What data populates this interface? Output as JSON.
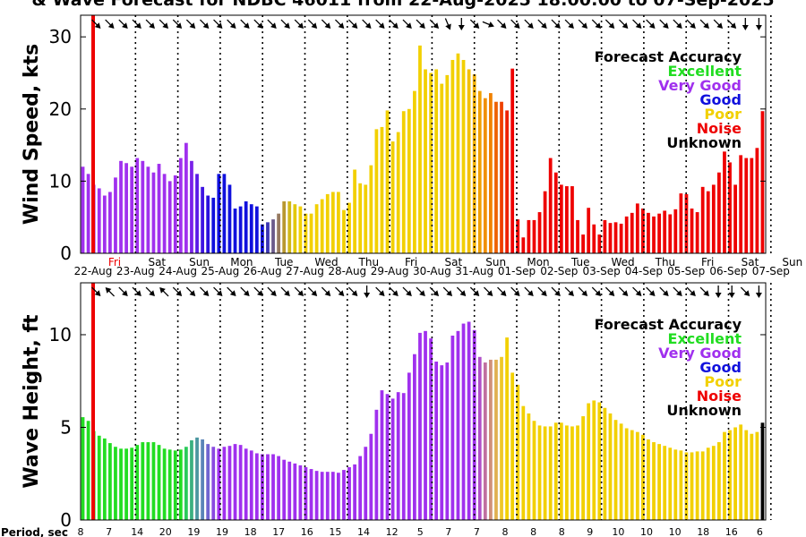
{
  "title": "& Wave Forecast for NDBC 46011 from 22-Aug-2025 18:00:00 to 07-Sep-2025",
  "period_label": "Period, sec",
  "period_values": [
    "8",
    "7",
    "14",
    "20",
    "19",
    "19",
    "18",
    "17",
    "16",
    "15",
    "14",
    "12",
    "5",
    "7",
    "7",
    "8",
    "8",
    "8",
    "9",
    "10",
    "10",
    "10",
    "18",
    "16",
    "6"
  ],
  "days": {
    "names": [
      "Fri",
      "Sat",
      "Sun",
      "Mon",
      "Tue",
      "Wed",
      "Thu",
      "Fri",
      "Sat",
      "Sun",
      "Mon",
      "Tue",
      "Wed",
      "Thu",
      "Fri",
      "Sat",
      "Sun"
    ],
    "dates": [
      "22-Aug",
      "23-Aug",
      "24-Aug",
      "25-Aug",
      "26-Aug",
      "27-Aug",
      "28-Aug",
      "29-Aug",
      "30-Aug",
      "31-Aug",
      "01-Sep",
      "02-Sep",
      "03-Sep",
      "04-Sep",
      "05-Sep",
      "06-Sep",
      "07-Sep"
    ]
  },
  "legend": {
    "title": "Forecast Accuracy",
    "items": [
      {
        "label": "Excellent",
        "color": "#22dd22"
      },
      {
        "label": "Very Good",
        "color": "#a030ee"
      },
      {
        "label": "Good",
        "color": "#1010dd"
      },
      {
        "label": "Poor",
        "color": "#f2d000"
      },
      {
        "label": "Noise",
        "color": "#ee0000"
      },
      {
        "label": "Unknown",
        "color": "#000000"
      }
    ]
  },
  "chart_data": [
    {
      "type": "bar",
      "title": "Wind Speed Forecast",
      "ylabel": "Wind Speed, kts",
      "ylim": [
        0,
        33
      ],
      "yticks": [
        0,
        10,
        20,
        30
      ],
      "values": [
        12,
        11,
        9.5,
        9,
        8,
        8.5,
        10.5,
        12.8,
        12.5,
        12,
        13.2,
        12.8,
        12,
        11.2,
        12.4,
        11,
        10,
        10.8,
        13.2,
        15.3,
        12.8,
        11,
        9.2,
        8,
        7.7,
        11,
        11,
        9.5,
        6.2,
        6.5,
        7.2,
        6.8,
        6.5,
        4,
        4.3,
        4.7,
        5.5,
        7.2,
        7.2,
        6.8,
        6.5,
        5.5,
        5.5,
        6.8,
        7.5,
        8.2,
        8.5,
        8.5,
        6,
        7,
        11.6,
        9.7,
        9.5,
        12.2,
        17.2,
        17.5,
        19.8,
        15.5,
        16.8,
        19.7,
        20,
        22.5,
        28.8,
        25.5,
        25,
        25.5,
        23.5,
        24.7,
        26.8,
        27.7,
        26.8,
        25.5,
        24.8,
        22.5,
        21.5,
        22.2,
        21,
        21,
        19.8,
        25.6,
        4.7,
        2.2,
        4.6,
        4.6,
        5.7,
        8.6,
        13.2,
        11.2,
        9.5,
        9.3,
        9.3,
        4.6,
        2.6,
        6.3,
        4,
        2.6,
        4.6,
        4.2,
        4.3,
        4.1,
        5.1,
        5.6,
        6.9,
        6.2,
        5.6,
        5.1,
        5.5,
        5.9,
        5.4,
        6.1,
        8.3,
        8.2,
        6.2,
        5.7,
        9.2,
        8.6,
        9.5,
        11.2,
        14.1,
        12.6,
        9.5,
        13.6,
        13.2,
        13.2,
        14.6,
        19.7
      ],
      "colors": [
        "#a030ee",
        "#a030ee",
        "#a030ee",
        "#a030ee",
        "#a030ee",
        "#a030ee",
        "#a030ee",
        "#a030ee",
        "#a030ee",
        "#a030ee",
        "#a030ee",
        "#a030ee",
        "#a030ee",
        "#a030ee",
        "#a030ee",
        "#a030ee",
        "#a030ee",
        "#a030ee",
        "#a030ee",
        "#a030ee",
        "#7a22e8",
        "#5a1ae6",
        "#3e14e2",
        "#2a10de",
        "#1010dd",
        "#1010dd",
        "#1010dd",
        "#1010dd",
        "#1010dd",
        "#1010dd",
        "#1010dd",
        "#1010dd",
        "#1010dd",
        "#1010dd",
        "#3a34b4",
        "#6a5a8a",
        "#967a60",
        "#b89830",
        "#d0b818",
        "#e2c80a",
        "#f2d000",
        "#f2d000",
        "#f2d000",
        "#f2d000",
        "#f2d000",
        "#f2d000",
        "#f2d000",
        "#f2d000",
        "#f2d000",
        "#f2d000",
        "#f2d000",
        "#f2d000",
        "#f2d000",
        "#f2d000",
        "#f2d000",
        "#f2d000",
        "#f2d000",
        "#f2d000",
        "#f2d000",
        "#f2d000",
        "#f2d000",
        "#f2d000",
        "#f2d000",
        "#f2d000",
        "#f2d000",
        "#f2d000",
        "#f2d000",
        "#f2d000",
        "#f2d000",
        "#f2d000",
        "#f2d000",
        "#f2c000",
        "#f2b000",
        "#f0a000",
        "#f09000",
        "#f08000",
        "#ee6000",
        "#ee4000",
        "#ee2000",
        "#ee0000",
        "#ee0000",
        "#ee0000",
        "#ee0000",
        "#ee0000",
        "#ee0000",
        "#ee0000",
        "#ee0000",
        "#ee0000",
        "#ee0000",
        "#ee0000",
        "#ee0000",
        "#ee0000",
        "#ee0000",
        "#ee0000",
        "#ee0000",
        "#ee0000",
        "#ee0000",
        "#ee0000",
        "#ee0000",
        "#ee0000",
        "#ee0000",
        "#ee0000",
        "#ee0000",
        "#ee0000",
        "#ee0000",
        "#ee0000",
        "#ee0000",
        "#ee0000",
        "#ee0000",
        "#ee0000",
        "#ee0000",
        "#ee0000",
        "#ee0000",
        "#ee0000",
        "#ee0000",
        "#ee0000",
        "#ee0000",
        "#ee0000",
        "#ee0000",
        "#ee0000",
        "#ee0000",
        "#ee0000",
        "#ee0000",
        "#ee0000",
        "#ee0000",
        "#ee0000"
      ]
    },
    {
      "type": "bar",
      "title": "Wave Height Forecast",
      "ylabel": "Wave Height, ft",
      "ylim": [
        0,
        12.8
      ],
      "yticks": [
        0,
        5,
        10
      ],
      "values": [
        5.55,
        5.35,
        4.8,
        4.55,
        4.4,
        4.15,
        3.95,
        3.85,
        3.85,
        3.9,
        4.05,
        4.2,
        4.2,
        4.2,
        4.05,
        3.85,
        3.8,
        3.75,
        3.8,
        3.95,
        4.3,
        4.45,
        4.35,
        4.1,
        3.95,
        3.85,
        3.95,
        4.0,
        4.1,
        4.05,
        3.85,
        3.75,
        3.6,
        3.55,
        3.55,
        3.55,
        3.45,
        3.25,
        3.15,
        3.05,
        2.95,
        2.85,
        2.75,
        2.65,
        2.6,
        2.6,
        2.6,
        2.55,
        2.7,
        2.85,
        3.0,
        3.45,
        3.95,
        4.65,
        5.95,
        7.0,
        6.8,
        6.55,
        6.9,
        6.85,
        7.95,
        8.95,
        10.1,
        10.2,
        9.8,
        8.55,
        8.35,
        8.5,
        9.95,
        10.2,
        10.6,
        10.7,
        10.25,
        8.8,
        8.5,
        8.65,
        8.65,
        8.8,
        9.85,
        7.95,
        7.3,
        6.15,
        5.75,
        5.35,
        5.1,
        5.05,
        5.05,
        5.25,
        5.25,
        5.1,
        5.05,
        5.1,
        5.6,
        6.3,
        6.45,
        6.35,
        6.05,
        5.75,
        5.4,
        5.2,
        4.95,
        4.85,
        4.75,
        4.6,
        4.35,
        4.2,
        4.1,
        4.0,
        3.9,
        3.8,
        3.75,
        3.65,
        3.65,
        3.7,
        3.7,
        3.9,
        4.0,
        4.2,
        4.75,
        4.85,
        5.0,
        5.15,
        4.85,
        4.65,
        4.75,
        5.25
      ],
      "colors": [
        "#22dd22",
        "#22dd22",
        "#22dd22",
        "#22dd22",
        "#22dd22",
        "#22dd22",
        "#22dd22",
        "#22dd22",
        "#22dd22",
        "#22dd22",
        "#22dd22",
        "#22dd22",
        "#22dd22",
        "#22dd22",
        "#22dd22",
        "#22dd22",
        "#22dd22",
        "#22dd22",
        "#22dd22",
        "#2aca5a",
        "#3ab080",
        "#4a96a0",
        "#5a84b8",
        "#7064d0",
        "#8a4ae0",
        "#a030ee",
        "#a030ee",
        "#a030ee",
        "#a030ee",
        "#a030ee",
        "#a030ee",
        "#a030ee",
        "#a030ee",
        "#a030ee",
        "#a030ee",
        "#a030ee",
        "#a030ee",
        "#a030ee",
        "#a030ee",
        "#a030ee",
        "#a030ee",
        "#a030ee",
        "#a030ee",
        "#a030ee",
        "#a030ee",
        "#a030ee",
        "#a030ee",
        "#a030ee",
        "#a030ee",
        "#a030ee",
        "#a030ee",
        "#a030ee",
        "#a030ee",
        "#a030ee",
        "#a030ee",
        "#a030ee",
        "#a030ee",
        "#a030ee",
        "#a030ee",
        "#a030ee",
        "#a030ee",
        "#a030ee",
        "#a030ee",
        "#a030ee",
        "#a030ee",
        "#a030ee",
        "#a030ee",
        "#a030ee",
        "#a030ee",
        "#a030ee",
        "#a030ee",
        "#a030ee",
        "#a030ee",
        "#b050c8",
        "#c070a0",
        "#d09078",
        "#e0b050",
        "#eec828",
        "#f2d000",
        "#f2d000",
        "#f2d000",
        "#f2d000",
        "#f2d000",
        "#f2d000",
        "#f2d000",
        "#f2d000",
        "#f2d000",
        "#f2d000",
        "#f2d000",
        "#f2d000",
        "#f2d000",
        "#f2d000",
        "#f2d000",
        "#f2d000",
        "#f2d000",
        "#f2d000",
        "#f2d000",
        "#f2d000",
        "#f2d000",
        "#f2d000",
        "#f2d000",
        "#f2d000",
        "#f2d000",
        "#f2d000",
        "#f2d000",
        "#f2d000",
        "#f2d000",
        "#f2d000",
        "#f2d000",
        "#f2d000",
        "#f2d000",
        "#f2d000",
        "#f2d000",
        "#f2d000",
        "#f2d000",
        "#f2d000",
        "#f2d000",
        "#f2d000",
        "#f2d000",
        "#f2d000",
        "#f2d000",
        "#f2d000",
        "#f2d000",
        "#f2d000",
        "#f2d000"
      ]
    }
  ]
}
